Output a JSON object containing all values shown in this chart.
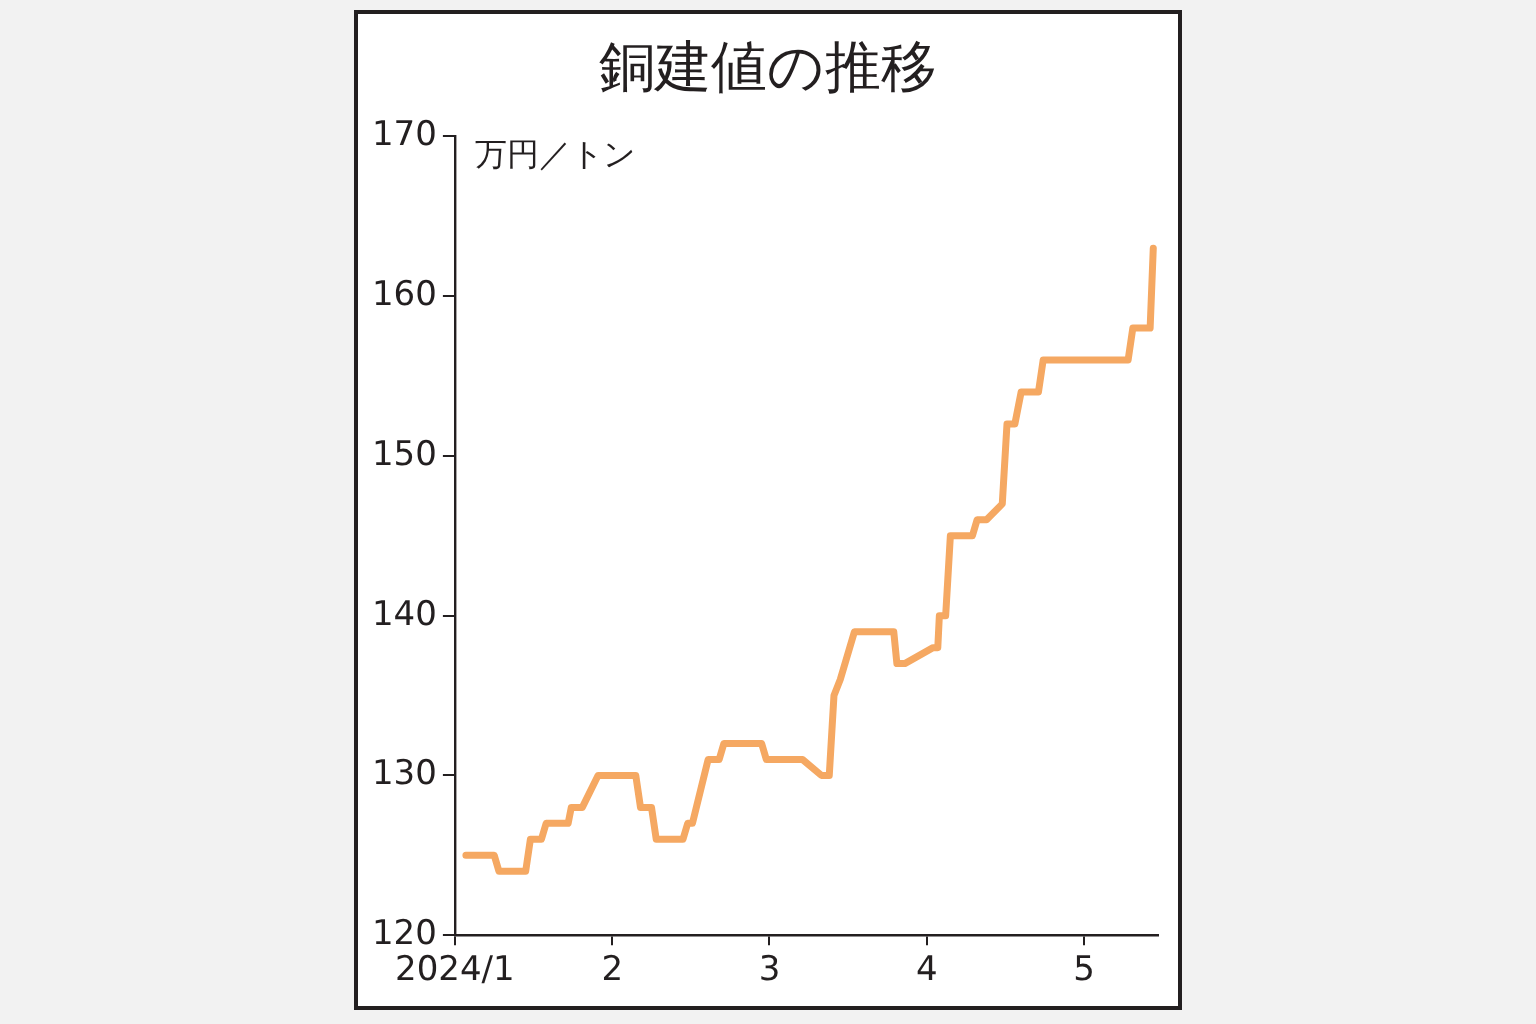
{
  "chart_data": {
    "type": "line",
    "title": "銅建値の推移",
    "ylabel": "万円／トン",
    "x": [
      1.07,
      1.25,
      1.28,
      1.45,
      1.48,
      1.55,
      1.58,
      1.72,
      1.74,
      1.81,
      1.91,
      2.15,
      2.18,
      2.25,
      2.28,
      2.45,
      2.48,
      2.51,
      2.61,
      2.68,
      2.71,
      2.95,
      2.98,
      3.21,
      3.33,
      3.38,
      3.41,
      3.45,
      3.54,
      3.79,
      3.81,
      3.86,
      4.04,
      4.07,
      4.08,
      4.12,
      4.15,
      4.29,
      4.32,
      4.38,
      4.48,
      4.51,
      4.56,
      4.6,
      4.71,
      4.74,
      5.28,
      5.31,
      5.42,
      5.44
    ],
    "series": [
      {
        "color": "#f5a862",
        "values": [
          125,
          125,
          124,
          124,
          126,
          126,
          127,
          127,
          128,
          128,
          130,
          130,
          128,
          128,
          126,
          126,
          127,
          127,
          131,
          131,
          132,
          132,
          131,
          131,
          130,
          130,
          135,
          136,
          139,
          139,
          137,
          137,
          138,
          138,
          140,
          140,
          145,
          145,
          146,
          146,
          147,
          152,
          152,
          154,
          154,
          156,
          156,
          158,
          158,
          163
        ]
      }
    ],
    "xlim": [
      1,
      5.47
    ],
    "xticks": [
      {
        "value": 1,
        "label": "2024/1"
      },
      2,
      3,
      4,
      5
    ],
    "ylim": [
      120,
      170
    ],
    "yticks": [
      120,
      130,
      140,
      150,
      160,
      170
    ],
    "grid": false,
    "legend": false,
    "marker": "none",
    "line_style": "solid"
  }
}
